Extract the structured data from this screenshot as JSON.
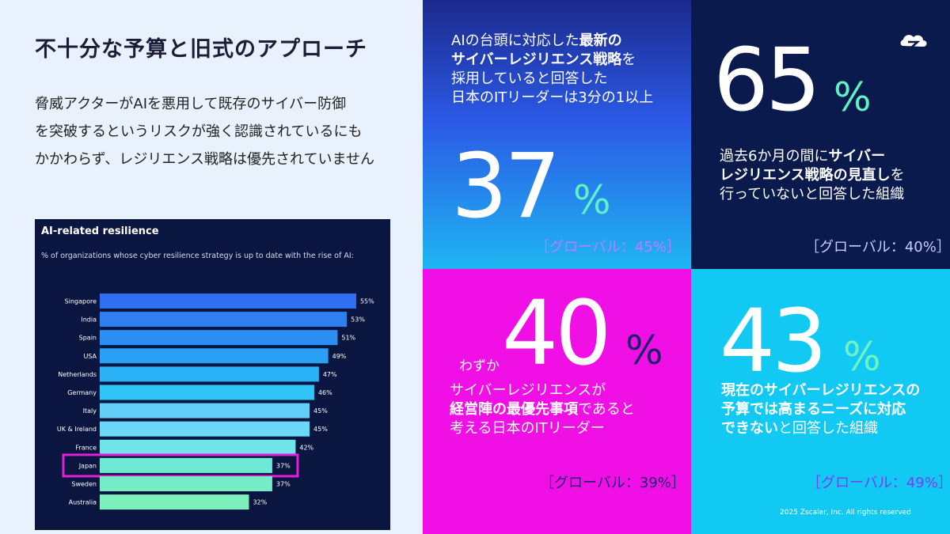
{
  "header": {
    "title": "不十分な予算と旧式のアプローチ",
    "desc_lines": [
      "脅威アクターがAIを悪用して既存のサイバー防御",
      "を突破するというリスクが強く認識されているにも",
      "かかわらず、レジリエンス戦略は優先されていません"
    ]
  },
  "chart_data": {
    "type": "bar",
    "orientation": "horizontal",
    "title": "AI-related resilience",
    "subtitle": "% of organizations whose cyber resilience strategy is up to date with the rise of AI:",
    "categories": [
      "Singapore",
      "India",
      "Spain",
      "USA",
      "Netherlands",
      "Germany",
      "Italy",
      "UK & Ireland",
      "France",
      "Japan",
      "Sweden",
      "Australia"
    ],
    "values": [
      55,
      53,
      51,
      49,
      47,
      46,
      45,
      45,
      42,
      37,
      37,
      32
    ],
    "value_labels": [
      "55%",
      "53%",
      "51%",
      "49%",
      "47%",
      "46%",
      "45%",
      "45%",
      "42%",
      "37%",
      "37%",
      "32%"
    ],
    "highlight": "Japan",
    "highlight_color": "#e01fd6",
    "xlim": [
      0,
      60
    ],
    "grid": false,
    "colors": [
      "#2f6ff0",
      "#2f7ff2",
      "#2b8ff3",
      "#2aa0f4",
      "#2bb2f6",
      "#2fc5f7",
      "#63cff8",
      "#6ad8f6",
      "#6ee3ea",
      "#6ee9d6",
      "#74edc7",
      "#7ef0bb"
    ]
  },
  "panels": {
    "p1": {
      "text_lines": [
        [
          {
            "t": "AIの台頭に対応した",
            "b": false
          },
          {
            "t": "最新の",
            "b": true
          }
        ],
        [
          {
            "t": "サイバーレジリエンス戦略",
            "b": true
          },
          {
            "t": "を",
            "b": false
          }
        ],
        [
          {
            "t": "採用していると回答した",
            "b": false
          }
        ],
        [
          {
            "t": "日本のITリーダーは3分の1以上",
            "b": false
          }
        ]
      ],
      "number": "37",
      "percent": "%",
      "global": "［グローバル：45%］",
      "percent_color": "#5ff2c4",
      "global_color": "#c27bff"
    },
    "p2": {
      "number": "65",
      "percent": "%",
      "text_lines": [
        [
          {
            "t": "過去6か月の間に",
            "b": false
          },
          {
            "t": "サイバー",
            "b": true
          }
        ],
        [
          {
            "t": "レジリエンス戦略の見直し",
            "b": true
          },
          {
            "t": "を",
            "b": false
          }
        ],
        [
          {
            "t": "行っていないと回答した組織",
            "b": false
          }
        ]
      ],
      "global": "［グローバル：40%］",
      "percent_color": "#5ff2c4",
      "global_color": "#c7ccff"
    },
    "p3": {
      "prefix": "わずか",
      "number": "40",
      "percent": "%",
      "text_lines": [
        [
          {
            "t": "サイバーレジリエンスが",
            "b": false
          }
        ],
        [
          {
            "t": "経営陣の最優先事項",
            "b": true
          },
          {
            "t": "であると",
            "b": false
          }
        ],
        [
          {
            "t": "考える日本のITリーダー",
            "b": false
          }
        ]
      ],
      "global": "［グローバル：39%］",
      "percent_color": "#1b1f6e",
      "global_color": "#1b1f6e"
    },
    "p4": {
      "number": "43",
      "percent": "%",
      "text_lines": [
        [
          {
            "t": "現在のサイバーレジリエンスの",
            "b": true
          }
        ],
        [
          {
            "t": "予算では高まるニーズに対応",
            "b": true
          }
        ],
        [
          {
            "t": "できない",
            "b": true
          },
          {
            "t": "と回答した組織",
            "b": false
          }
        ]
      ],
      "global": "［グローバル：49%］",
      "copyright": "2025 Zscaler, Inc. All rights reserved",
      "percent_color": "#6ff2c4",
      "global_color": "#7a3df0"
    }
  }
}
